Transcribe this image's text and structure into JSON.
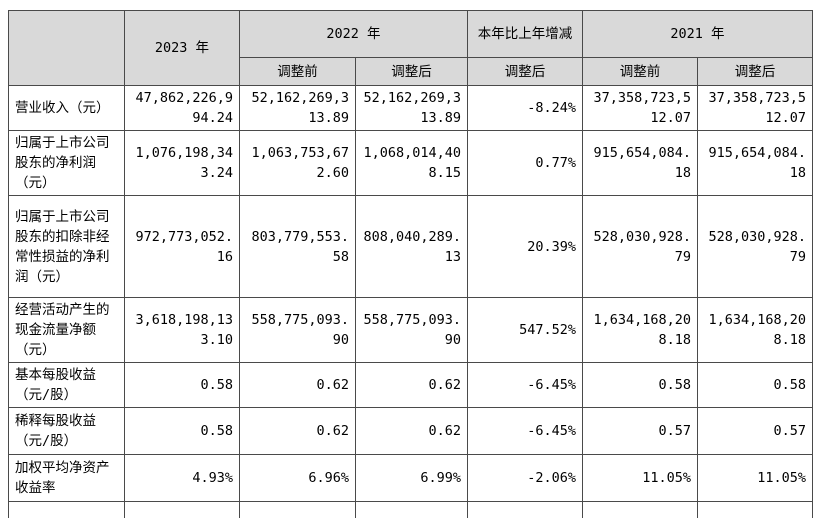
{
  "headers": {
    "y2023": "2023 年",
    "y2022": "2022 年",
    "change": "本年比上年增减",
    "y2021": "2021 年",
    "before": "调整前",
    "after": "调整后",
    "change_sub": "调整后",
    "before_2021": "调整前",
    "after_2021": "调整后"
  },
  "rows": [
    {
      "label": "营业收入（元）",
      "y2023": "47,862,226,994.24",
      "y2022_before": "52,162,269,313.89",
      "y2022_after": "52,162,269,313.89",
      "change": "-8.24%",
      "y2021_before": "37,358,723,512.07",
      "y2021_after": "37,358,723,512.07"
    },
    {
      "label": "归属于上市公司股东的净利润（元）",
      "y2023": "1,076,198,343.24",
      "y2022_before": "1,063,753,672.60",
      "y2022_after": "1,068,014,408.15",
      "change": "0.77%",
      "y2021_before": "915,654,084.18",
      "y2021_after": "915,654,084.18"
    },
    {
      "label": "归属于上市公司股东的扣除非经常性损益的净利润（元）",
      "y2023": "972,773,052.16",
      "y2022_before": "803,779,553.58",
      "y2022_after": "808,040,289.13",
      "change": "20.39%",
      "y2021_before": "528,030,928.79",
      "y2021_after": "528,030,928.79"
    },
    {
      "label": "经营活动产生的现金流量净额（元）",
      "y2023": "3,618,198,133.10",
      "y2022_before": "558,775,093.90",
      "y2022_after": "558,775,093.90",
      "change": "547.52%",
      "y2021_before": "1,634,168,208.18",
      "y2021_after": "1,634,168,208.18"
    },
    {
      "label": "基本每股收益（元/股）",
      "y2023": "0.58",
      "y2022_before": "0.62",
      "y2022_after": "0.62",
      "change": "-6.45%",
      "y2021_before": "0.58",
      "y2021_after": "0.58"
    },
    {
      "label": "稀释每股收益（元/股）",
      "y2023": "0.58",
      "y2022_before": "0.62",
      "y2022_after": "0.62",
      "change": "-6.45%",
      "y2021_before": "0.57",
      "y2021_after": "0.57"
    },
    {
      "label": "加权平均净资产收益率",
      "y2023": "4.93%",
      "y2022_before": "6.96%",
      "y2022_after": "6.99%",
      "change": "-2.06%",
      "y2021_before": "11.05%",
      "y2021_after": "11.05%"
    }
  ]
}
